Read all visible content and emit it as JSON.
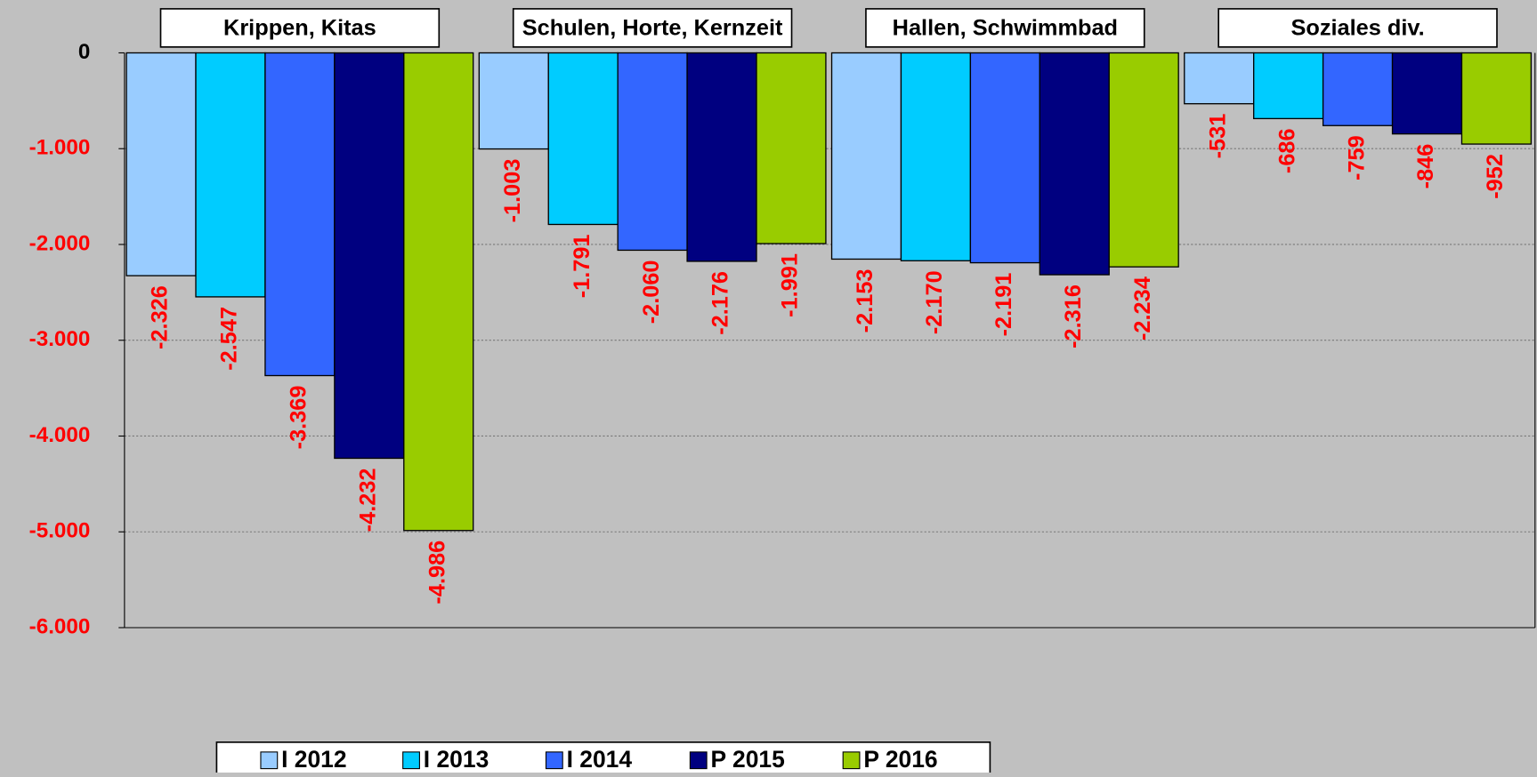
{
  "chart_data": {
    "type": "bar",
    "categories": [
      "Krippen, Kitas",
      "Schulen, Horte, Kernzeit",
      "Hallen, Schwimmbad",
      "Soziales div."
    ],
    "series": [
      {
        "name": "I 2012",
        "color": "#99ccff",
        "values": [
          -2326,
          -1003,
          -2153,
          -531
        ],
        "value_labels": [
          "-2.326",
          "-1.003",
          "-2.153",
          "-531"
        ]
      },
      {
        "name": "I 2013",
        "color": "#00ccff",
        "values": [
          -2547,
          -1791,
          -2170,
          -686
        ],
        "value_labels": [
          "-2.547",
          "-1.791",
          "-2.170",
          "-686"
        ]
      },
      {
        "name": "I 2014",
        "color": "#3366ff",
        "values": [
          -3369,
          -2060,
          -2191,
          -759
        ],
        "value_labels": [
          "-3.369",
          "-2.060",
          "-2.191",
          "-759"
        ]
      },
      {
        "name": "P 2015",
        "color": "#000080",
        "values": [
          -4232,
          -2176,
          -2316,
          -846
        ],
        "value_labels": [
          "-4.232",
          "-2.176",
          "-2.316",
          "-846"
        ]
      },
      {
        "name": "P 2016",
        "color": "#99cc00",
        "values": [
          -4986,
          -1991,
          -2234,
          -952
        ],
        "value_labels": [
          "-4.986",
          "-1.991",
          "-2.234",
          "-952"
        ]
      }
    ],
    "ylim": [
      -6000,
      0
    ],
    "yticks": [
      0,
      {
        "value": -1000,
        "label": "-1.000"
      },
      {
        "value": -2000,
        "label": "-2.000"
      },
      {
        "value": -3000,
        "label": "-3.000"
      },
      {
        "value": -4000,
        "label": "-4.000"
      },
      {
        "value": -5000,
        "label": "-5.000"
      },
      {
        "value": -6000,
        "label": "-6.000"
      }
    ],
    "grid": true,
    "legend": "bottom"
  }
}
